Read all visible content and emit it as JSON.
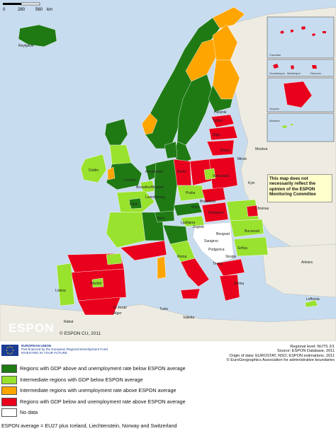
{
  "map": {
    "colors": {
      "sea": "#c8dcef",
      "nonEU": "#eeece2",
      "dark_green": "#1f7a14",
      "light_green": "#99e22e",
      "orange": "#ffa500",
      "red": "#e8001c",
      "no_data": "#ffffff"
    },
    "cities": [
      "Reykjavík",
      "Helsinki",
      "Tallinn",
      "Riga",
      "Moskva",
      "Vilnius",
      "Minsk",
      "Dublin",
      "London",
      "Amsterdam",
      "Berlin",
      "Warszawa",
      "Kyiv",
      "Bruxelles/Brussel",
      "Praha",
      "Luxembourg",
      "Paris",
      "Bratislava",
      "Wien",
      "Budapest",
      "Chisinau",
      "Bern",
      "Ljubljana",
      "Zagreb",
      "Bucuresti",
      "Beograd",
      "Sarajevo",
      "Podgorica",
      "Sofiya",
      "Skopje",
      "Roma",
      "Tirana",
      "Madrid",
      "Lisboa",
      "Ankara",
      "Athina",
      "Lefkosia",
      "Valletta",
      "Rabat",
      "Alger",
      "Tunis",
      "El Jezair"
    ],
    "insets": [
      "Canarias",
      "Guadeloupe",
      "Martinique",
      "Réunion",
      "Guyane",
      "Madeira"
    ],
    "disclaimer": "This map does not necessarily reflect the opinion of the ESPON Monitoring Committee",
    "logo_text": "ESPON",
    "copyright": "© ESPON CU, 2011",
    "scale": {
      "ticks": [
        "0",
        "280",
        "560"
      ],
      "unit": "km"
    }
  },
  "footer": {
    "eu_text": [
      "EUROPEAN UNION",
      "Part-financed by the European Regional Development Fund",
      "INVESTING IN YOUR FUTURE"
    ],
    "source_lines": [
      "Regional level: NUTS 2/1",
      "Source: ESPON Database, 2011",
      "Origin of data: EUROSTAT, NSO, ESPON estimations, 2011",
      "© EuroGeographics Association for administrative boundaries"
    ]
  },
  "legend": {
    "items": [
      {
        "label": "Regions with GDP above and unemployment rate below ESPON average",
        "color": "#1f7a14"
      },
      {
        "label": "Intermediate regions with GDP below ESPON average",
        "color": "#99e22e"
      },
      {
        "label": "Intermediate regions with unemployment rate above ESPON average",
        "color": "#ffa500"
      },
      {
        "label": "Regions with GDP below and unemployment rate above ESPON average",
        "color": "#e8001c"
      },
      {
        "label": "No data",
        "color": "#ffffff"
      }
    ]
  },
  "note": "ESPON average = EU27 plus Iceland, Liechtenstein, Norway and Switzerland"
}
